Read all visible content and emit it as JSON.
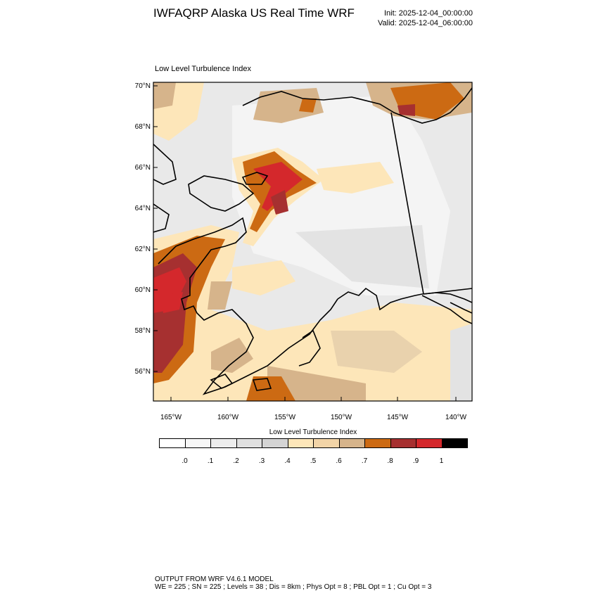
{
  "header": {
    "title": "IWFAQRP Alaska US Real Time WRF",
    "init": "Init: 2025-12-04_00:00:00",
    "valid": "Valid: 2025-12-04_06:00:00"
  },
  "map": {
    "subtitle": "Low Level Turbulence Index",
    "lat_labels": [
      "70°N",
      "68°N",
      "66°N",
      "64°N",
      "62°N",
      "60°N",
      "58°N",
      "56°N"
    ],
    "lon_labels": [
      "165°W",
      "160°W",
      "155°W",
      "150°W",
      "145°W",
      "140°W"
    ],
    "colors": {
      "land_light": "#e8e8e8",
      "land_white": "#f6f6f6",
      "beige": "#fde6b9",
      "tan": "#d6b48b",
      "orange": "#cc6a13",
      "darkred": "#a63030",
      "red": "#d4282c"
    }
  },
  "colorbar": {
    "title": "Low Level Turbulence Index",
    "colors": [
      "#ffffff",
      "#f7f7f7",
      "#ededed",
      "#e0e0e0",
      "#d4d4d4",
      "#fde6b9",
      "#f2d4a7",
      "#d6b48b",
      "#cc6a13",
      "#a63030",
      "#d4282c",
      "#000000"
    ],
    "ticks": [
      ".0",
      ".1",
      ".2",
      ".3",
      ".4",
      ".5",
      ".6",
      ".7",
      ".8",
      ".9",
      "1"
    ]
  },
  "footer": {
    "line1": "OUTPUT FROM WRF V4.6.1 MODEL",
    "line2": "WE = 225 ; SN = 225 ; Levels = 38 ; Dis = 8km ; Phys Opt = 8 ; PBL Opt = 1 ; Cu Opt = 3"
  }
}
